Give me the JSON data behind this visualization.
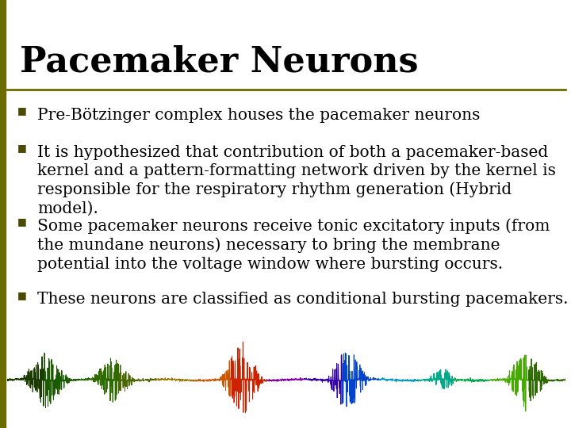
{
  "title": "Pacemaker Neurons",
  "title_fontsize": 32,
  "title_color": "#000000",
  "title_font": "serif",
  "background_color": "#ffffff",
  "left_bar_color": "#6b6b00",
  "separator_color": "#6b6b00",
  "bullet_color": "#4a4a00",
  "bullet_char": "■",
  "bullet_fontsize": 14.5,
  "bullet_items": [
    "Pre-Bötzinger complex houses the pacemaker neurons",
    "It is hypothesized that contribution of both a pacemaker-based\nkernel and a pattern-formatting network driven by the kernel is\nresponsible for the respiratory rhythm generation (Hybrid\nmodel).",
    "Some pacemaker neurons receive tonic excitatory inputs (from\nthe mundane neurons) necessary to bring the membrane\npotential into the voltage window where bursting occurs.",
    "These neurons are classified as conditional bursting pacemakers."
  ],
  "waveform_colors": [
    "#1a3a00",
    "#1a5a00",
    "#2d6a00",
    "#4a6600",
    "#997700",
    "#cc5500",
    "#cc2200",
    "#8800aa",
    "#3300aa",
    "#0044cc",
    "#0099cc",
    "#00aa88",
    "#00aa44",
    "#44aa00",
    "#2d6a00"
  ]
}
